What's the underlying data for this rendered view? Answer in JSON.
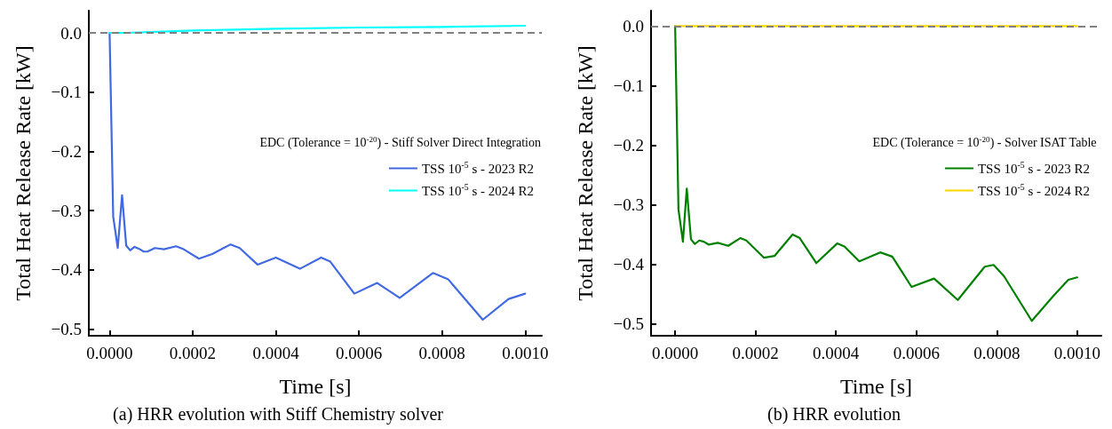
{
  "chart_data": [
    {
      "type": "line",
      "xlabel": "Time [s]",
      "ylabel": "Total Heat Release Rate [kW]",
      "legend_title": "EDC (Tolerance = 10$^{-20}$) - Stiff Solver Direct Integration",
      "annotations": [
        "(a) HRR evolution with Stiff Chemistry solver"
      ],
      "legend": "right",
      "marker": "none",
      "xlim": [
        -5e-05,
        0.00104
      ],
      "ylim": [
        -0.511,
        0.0375
      ],
      "xticks": [
        {
          "value": 0,
          "label": "0.0000"
        },
        {
          "value": 0.0002,
          "label": "0.0002"
        },
        {
          "value": 0.0004,
          "label": "0.0004"
        },
        {
          "value": 0.0006,
          "label": "0.0006"
        },
        {
          "value": 0.0008,
          "label": "0.0008"
        },
        {
          "value": 0.001,
          "label": "0.0010"
        }
      ],
      "yticks": [
        {
          "value": 0,
          "label": "0.0"
        },
        {
          "value": -0.1,
          "label": "−0.1"
        },
        {
          "value": -0.2,
          "label": "−0.2"
        },
        {
          "value": -0.3,
          "label": "−0.3"
        },
        {
          "value": -0.4,
          "label": "−0.4"
        },
        {
          "value": -0.5,
          "label": "−0.5"
        }
      ],
      "ref_lines": [
        {
          "axis": "y",
          "value": 0,
          "color": "#808080",
          "line_style": "dashed"
        }
      ],
      "series": [
        {
          "name": "TSS 10$^{-5}$ s - 2023 R2",
          "color": "#4169e1",
          "x": [
            0,
            8.7e-06,
            1.96e-05,
            3e-05,
            4e-05,
            4.95e-05,
            6e-05,
            7e-05,
            8.2e-05,
            9.1e-05,
            0.000109,
            0.000131,
            0.00016,
            0.000178,
            0.000215,
            0.000247,
            0.000291,
            0.000313,
            0.000356,
            0.0004,
            0.000458,
            0.000509,
            0.000531,
            0.000589,
            0.000644,
            0.000698,
            0.000778,
            0.000815,
            0.000898,
            0.00096,
            0.001
          ],
          "values": [
            0,
            -0.31,
            -0.363,
            -0.274,
            -0.359,
            -0.367,
            -0.361,
            -0.364,
            -0.369,
            -0.369,
            -0.363,
            -0.365,
            -0.36,
            -0.365,
            -0.381,
            -0.373,
            -0.357,
            -0.363,
            -0.391,
            -0.379,
            -0.398,
            -0.379,
            -0.386,
            -0.44,
            -0.422,
            -0.447,
            -0.405,
            -0.416,
            -0.484,
            -0.449,
            -0.44
          ]
        },
        {
          "name": "TSS 10$^{-5}$ s - 2024 R2",
          "color": "#00ffff",
          "x": [
            0,
            4e-05,
            0.0002,
            0.0004,
            0.0006,
            0.0008,
            0.001
          ],
          "values": [
            0,
            0,
            0.004,
            0.007,
            0.009,
            0.01,
            0.012
          ]
        }
      ]
    },
    {
      "type": "line",
      "xlabel": "Time [s]",
      "ylabel": "Total Heat Release Rate [kW]",
      "legend_title": "EDC (Tolerance = 10$^{-20}$) - Solver ISAT Table",
      "annotations": [
        "(b) HRR evolution"
      ],
      "legend": "right",
      "marker": "none",
      "xlim": [
        -6e-05,
        0.00106
      ],
      "ylim": [
        -0.52,
        0.026
      ],
      "xticks": [
        {
          "value": 0,
          "label": "0.0000"
        },
        {
          "value": 0.0002,
          "label": "0.0002"
        },
        {
          "value": 0.0004,
          "label": "0.0004"
        },
        {
          "value": 0.0006,
          "label": "0.0006"
        },
        {
          "value": 0.0008,
          "label": "0.0008"
        },
        {
          "value": 0.001,
          "label": "0.0010"
        }
      ],
      "yticks": [
        {
          "value": 0,
          "label": "0.0"
        },
        {
          "value": -0.1,
          "label": "−0.1"
        },
        {
          "value": -0.2,
          "label": "−0.2"
        },
        {
          "value": -0.3,
          "label": "−0.3"
        },
        {
          "value": -0.4,
          "label": "−0.4"
        },
        {
          "value": -0.5,
          "label": "−0.5"
        }
      ],
      "ref_lines": [
        {
          "axis": "y",
          "value": 0,
          "color": "#808080",
          "line_style": "dashed"
        }
      ],
      "series": [
        {
          "name": "TSS 10$^{-5}$ s - 2023 R2",
          "color": "#008000",
          "x": [
            0,
            8.2e-06,
            1.93e-05,
            2.89e-05,
            3.93e-05,
            4.9e-05,
            6e-05,
            7.12e-05,
            8.38e-05,
            0.000106,
            0.000132,
            0.000162,
            0.000177,
            0.000221,
            0.000247,
            0.000292,
            0.00031,
            0.000351,
            0.000403,
            0.000421,
            0.000458,
            0.00051,
            0.00054,
            0.000588,
            0.000644,
            0.000703,
            0.00077,
            0.000792,
            0.000818,
            0.000887,
            0.000941,
            0.000978,
            0.001
          ],
          "values": [
            0,
            -0.308,
            -0.362,
            -0.273,
            -0.358,
            -0.366,
            -0.36,
            -0.362,
            -0.367,
            -0.364,
            -0.369,
            -0.356,
            -0.36,
            -0.389,
            -0.386,
            -0.35,
            -0.356,
            -0.398,
            -0.365,
            -0.37,
            -0.395,
            -0.38,
            -0.387,
            -0.438,
            -0.424,
            -0.46,
            -0.404,
            -0.401,
            -0.42,
            -0.495,
            -0.453,
            -0.426,
            -0.422
          ]
        },
        {
          "name": "TSS 10$^{-5}$ s - 2024 R2",
          "color": "#ffd700",
          "x": [
            0,
            0.0002,
            0.0004,
            0.0006,
            0.0008,
            0.001
          ],
          "values": [
            0,
            0,
            0,
            0,
            0,
            0
          ]
        }
      ]
    }
  ]
}
